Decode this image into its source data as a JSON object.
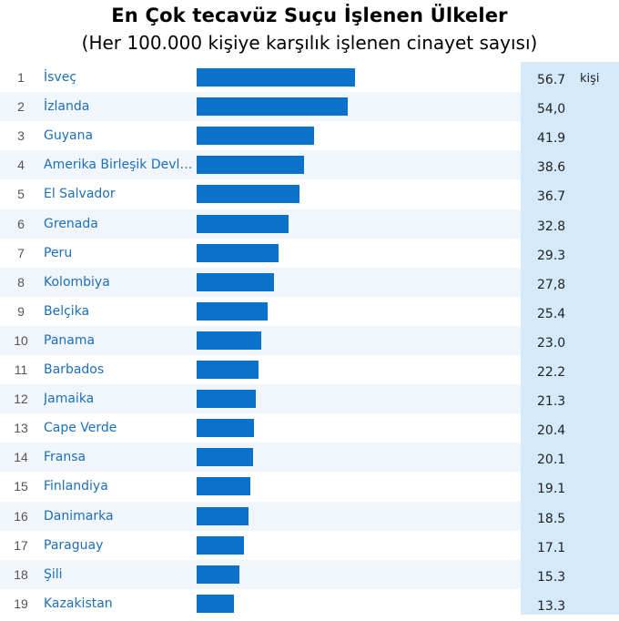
{
  "chart_data": {
    "type": "bar",
    "orientation": "horizontal",
    "title": "En Çok tecavüz Suçu İşlenen Ülkeler",
    "subtitle": "(Her 100.000 kişiye karşılık işlenen cinayet sayısı)",
    "unit_label": "kişi",
    "xlim": [
      0,
      56.7
    ],
    "ranks": [
      "1",
      "2",
      "3",
      "4",
      "5",
      "6",
      "7",
      "8",
      "9",
      "10",
      "11",
      "12",
      "13",
      "14",
      "15",
      "16",
      "17",
      "18",
      "19"
    ],
    "categories": [
      "İsveç",
      "İzlanda",
      "Guyana",
      "Amerika Birleşik Devletl...",
      "El Salvador",
      "Grenada",
      "Peru",
      "Kolombiya",
      "Belçika",
      "Panama",
      "Barbados",
      "Jamaika",
      "Cape Verde",
      "Fransa",
      "Finlandiya",
      "Danimarka",
      "Paraguay",
      "Şili",
      "Kazakistan"
    ],
    "values": [
      56.7,
      54.0,
      41.9,
      38.6,
      36.7,
      32.8,
      29.3,
      27.8,
      25.4,
      23.0,
      22.2,
      21.3,
      20.4,
      20.1,
      19.1,
      18.5,
      17.1,
      15.3,
      13.3
    ],
    "value_labels": [
      "56.7",
      "54,0",
      "41.9",
      "38.6",
      "36.7",
      "32.8",
      "29.3",
      "27,8",
      "25.4",
      "23.0",
      "22.2",
      "21.3",
      "20.4",
      "20.1",
      "19.1",
      "18.5",
      "17.1",
      "15.3",
      "13.3"
    ],
    "bar_color": "#0b72cc",
    "label_color": "#1c6fba",
    "value_column_color": "#d4e9f9",
    "grid": false,
    "legend": "none"
  }
}
